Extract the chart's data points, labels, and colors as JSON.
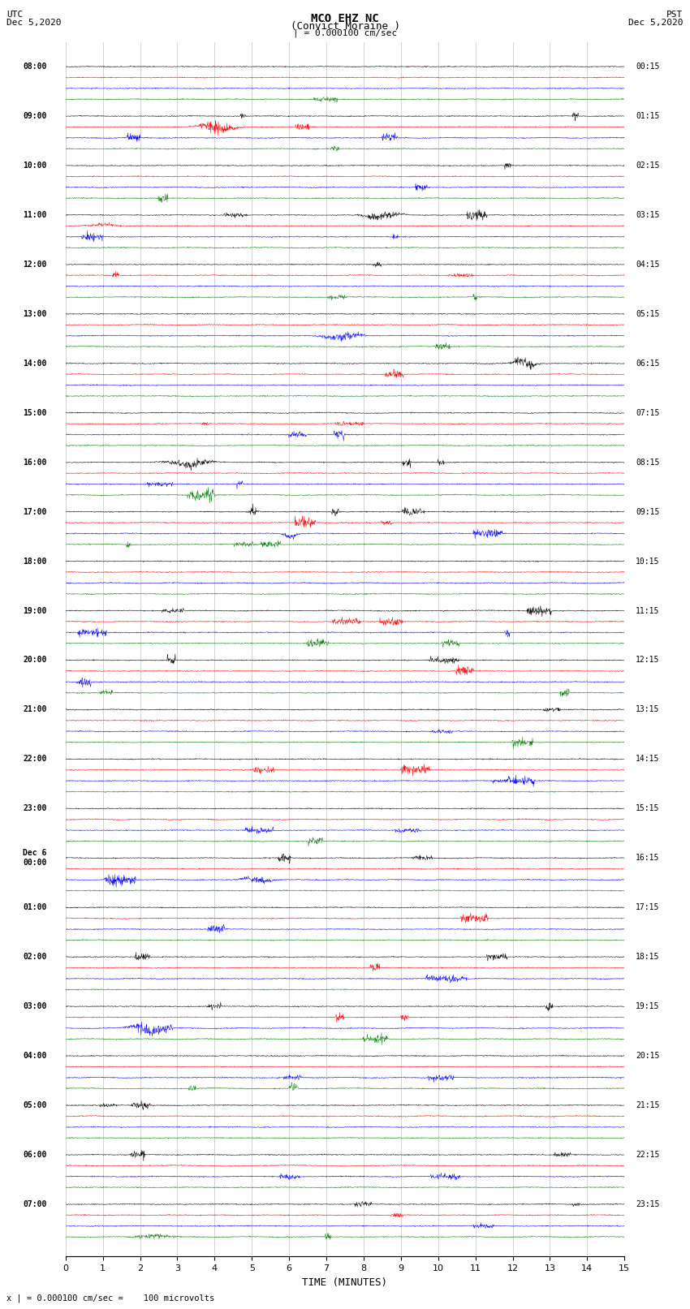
{
  "title_line1": "MCO EHZ NC",
  "title_line2": "(Convict Moraine )",
  "scale_label": "| = 0.000100 cm/sec",
  "left_header_line1": "UTC",
  "left_header_line2": "Dec 5,2020",
  "right_header_line1": "PST",
  "right_header_line2": "Dec 5,2020",
  "bottom_label": "TIME (MINUTES)",
  "footnote": "x | = 0.000100 cm/sec =    100 microvolts",
  "colors": [
    "black",
    "red",
    "blue",
    "green"
  ],
  "xlim": [
    0,
    15
  ],
  "bg_color": "#ffffff",
  "grid_color": "#aaaaaa",
  "seed": 42,
  "num_hour_groups": 24,
  "traces_per_group": 4,
  "noise_amp": 0.012,
  "left_times": [
    "08:00",
    "09:00",
    "10:00",
    "11:00",
    "12:00",
    "13:00",
    "14:00",
    "15:00",
    "16:00",
    "17:00",
    "18:00",
    "19:00",
    "20:00",
    "21:00",
    "22:00",
    "23:00",
    "Dec 6\n00:00",
    "01:00",
    "02:00",
    "03:00",
    "04:00",
    "05:00",
    "06:00",
    "07:00"
  ],
  "right_times": [
    "00:15",
    "01:15",
    "02:15",
    "03:15",
    "04:15",
    "05:15",
    "06:15",
    "07:15",
    "08:15",
    "09:15",
    "10:15",
    "11:15",
    "12:15",
    "13:15",
    "14:15",
    "15:15",
    "16:15",
    "17:15",
    "18:15",
    "19:15",
    "20:15",
    "21:15",
    "22:15",
    "23:15"
  ]
}
